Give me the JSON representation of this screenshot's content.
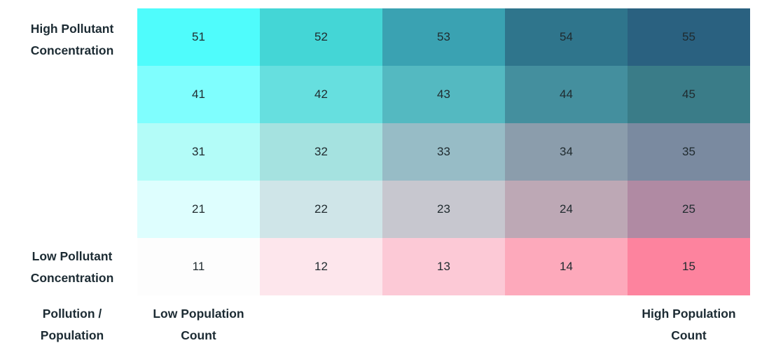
{
  "chart_data": {
    "type": "heatmap",
    "rows": [
      {
        "values": [
          "51",
          "52",
          "53",
          "54",
          "55"
        ],
        "colors": [
          "#4ffcfc",
          "#44d6d6",
          "#3aa2b2",
          "#2f758c",
          "#2a6180"
        ]
      },
      {
        "values": [
          "41",
          "42",
          "43",
          "44",
          "45"
        ],
        "colors": [
          "#7ffefe",
          "#66dfdf",
          "#54b9c1",
          "#448f9e",
          "#3a7c88"
        ]
      },
      {
        "values": [
          "31",
          "32",
          "33",
          "34",
          "35"
        ],
        "colors": [
          "#b3fcf8",
          "#a5e2e0",
          "#97bcc6",
          "#8b9dac",
          "#7a8aa0"
        ]
      },
      {
        "values": [
          "21",
          "22",
          "23",
          "24",
          "25"
        ],
        "colors": [
          "#defefe",
          "#cfe5e8",
          "#c7c7cf",
          "#bda8b5",
          "#b08aa3"
        ]
      },
      {
        "values": [
          "11",
          "12",
          "13",
          "14",
          "15"
        ],
        "colors": [
          "#fdfdfd",
          "#fde6ec",
          "#fcc9d6",
          "#fda9bb",
          "#fd839e"
        ]
      }
    ]
  },
  "labels": {
    "high_pollutant": [
      "High Pollutant",
      "Concentration"
    ],
    "low_pollutant": [
      "Low Pollutant",
      "Concentration"
    ],
    "corner": [
      "Pollution /",
      "Population"
    ],
    "low_population": [
      "Low Population",
      "Count"
    ],
    "high_population": [
      "High Population",
      "Count"
    ]
  }
}
